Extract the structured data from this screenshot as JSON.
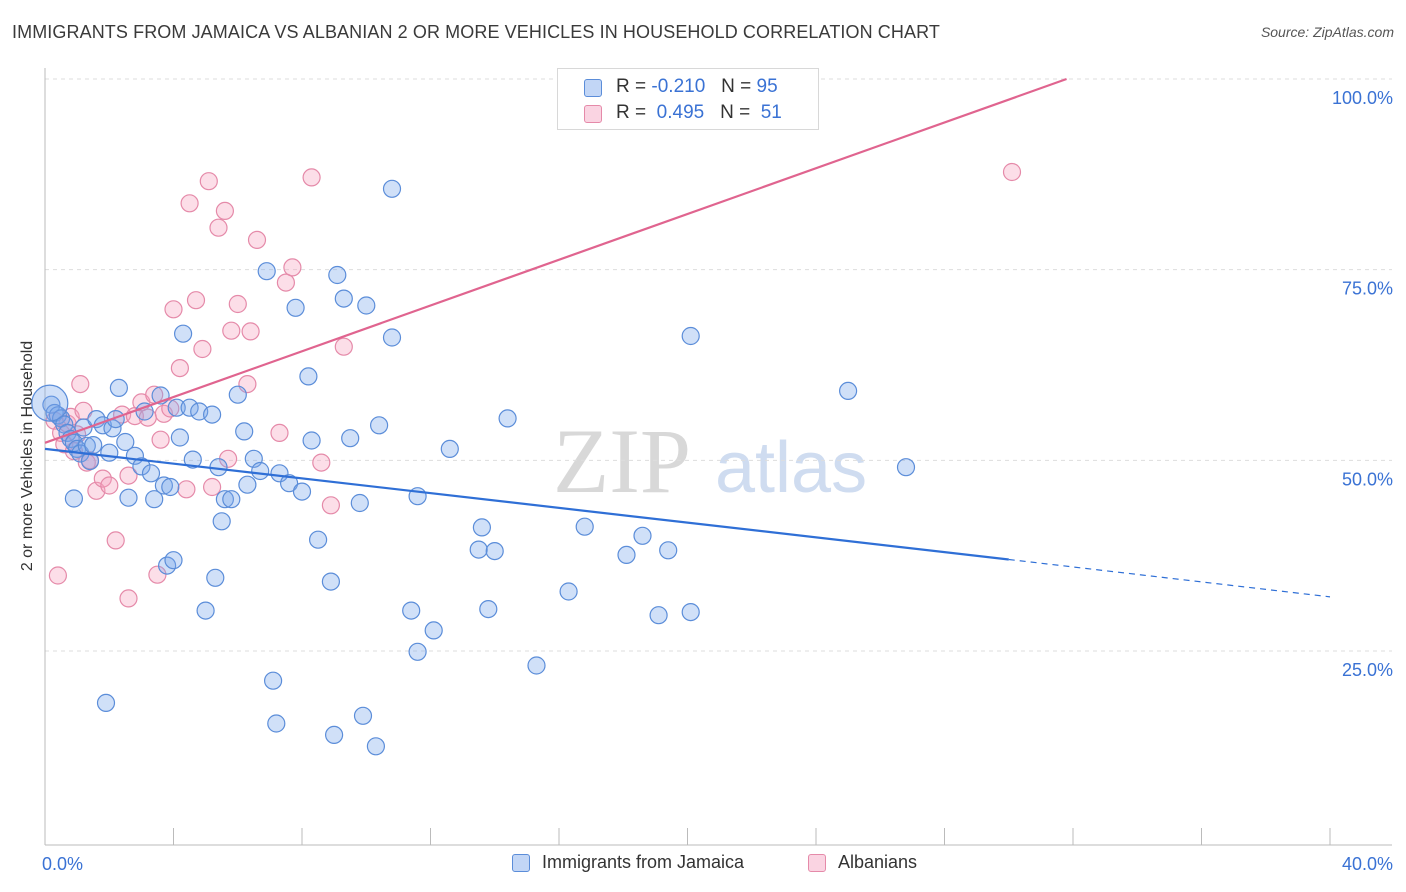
{
  "title": "IMMIGRANTS FROM JAMAICA VS ALBANIAN 2 OR MORE VEHICLES IN HOUSEHOLD CORRELATION CHART",
  "source": "Source: ZipAtlas.com",
  "watermark": {
    "zip": "ZIP",
    "atlas": "atlas"
  },
  "colors": {
    "blue_fill": "rgba(120,165,235,0.35)",
    "blue_stroke": "#5b8dd9",
    "blue_line": "#2f6fd6",
    "pink_fill": "rgba(245,160,190,0.35)",
    "pink_stroke": "#e58aa9",
    "pink_line": "#e0648f",
    "axis_text": "#3a72d4",
    "grid": "#dddddd"
  },
  "legend": {
    "rows": [
      {
        "r_label": "R =",
        "r_value": "-0.210",
        "n_label": "N =",
        "n_value": "95"
      },
      {
        "r_label": "R =",
        "r_value": "0.495",
        "n_label": "N =",
        "n_value": "51"
      }
    ]
  },
  "chart_data": {
    "type": "scatter",
    "title": "IMMIGRANTS FROM JAMAICA VS ALBANIAN 2 OR MORE VEHICLES IN HOUSEHOLD CORRELATION CHART",
    "xlabel": "",
    "ylabel": "2 or more Vehicles in Household",
    "xlim": [
      0,
      40
    ],
    "ylim": [
      0,
      105
    ],
    "x_tick_labels": [
      "0.0%",
      "40.0%"
    ],
    "y_ticks": [
      25,
      50,
      75,
      100
    ],
    "y_tick_labels": [
      "25.0%",
      "50.0%",
      "75.0%",
      "100.0%"
    ],
    "grid": true,
    "legend_position": "top-center",
    "series": [
      {
        "name": "Immigrants from Jamaica",
        "color": "#5b8dd9",
        "r": -0.21,
        "n": 95,
        "trend": {
          "x0": 0,
          "y0": 51.5,
          "x1": 30,
          "y1": 37.0,
          "dash_to_x": 40,
          "dash_to_y": 32.1
        },
        "points": [
          [
            0.2,
            57.3
          ],
          [
            0.3,
            56.2
          ],
          [
            0.4,
            55.9
          ],
          [
            0.5,
            55.5
          ],
          [
            0.6,
            54.7
          ],
          [
            0.7,
            53.6
          ],
          [
            0.8,
            52.8
          ],
          [
            0.9,
            52.3
          ],
          [
            1.0,
            51.5
          ],
          [
            1.1,
            50.9
          ],
          [
            1.2,
            54.3
          ],
          [
            1.3,
            51.9
          ],
          [
            1.4,
            49.9
          ],
          [
            1.6,
            55.4
          ],
          [
            1.8,
            54.6
          ],
          [
            2.1,
            54.2
          ],
          [
            2.2,
            55.4
          ],
          [
            2.3,
            59.5
          ],
          [
            2.5,
            52.4
          ],
          [
            2.6,
            45.1
          ],
          [
            2.8,
            50.6
          ],
          [
            3.0,
            49.2
          ],
          [
            3.1,
            56.4
          ],
          [
            3.3,
            48.3
          ],
          [
            3.4,
            44.9
          ],
          [
            3.6,
            58.5
          ],
          [
            3.7,
            46.7
          ],
          [
            3.8,
            36.2
          ],
          [
            4.0,
            36.9
          ],
          [
            4.1,
            56.9
          ],
          [
            4.2,
            53.0
          ],
          [
            4.3,
            66.6
          ],
          [
            4.5,
            56.9
          ],
          [
            4.6,
            50.1
          ],
          [
            4.8,
            56.4
          ],
          [
            5.0,
            30.3
          ],
          [
            5.2,
            56.0
          ],
          [
            5.3,
            34.6
          ],
          [
            5.4,
            49.1
          ],
          [
            5.5,
            42.0
          ],
          [
            5.6,
            44.9
          ],
          [
            5.8,
            44.9
          ],
          [
            6.0,
            58.6
          ],
          [
            6.2,
            53.8
          ],
          [
            6.3,
            46.8
          ],
          [
            6.5,
            50.2
          ],
          [
            6.7,
            48.6
          ],
          [
            6.9,
            74.8
          ],
          [
            7.1,
            21.1
          ],
          [
            7.3,
            48.3
          ],
          [
            7.6,
            47.0
          ],
          [
            7.8,
            70.0
          ],
          [
            8.0,
            45.9
          ],
          [
            8.2,
            61.0
          ],
          [
            8.3,
            52.6
          ],
          [
            8.5,
            39.6
          ],
          [
            8.9,
            34.1
          ],
          [
            9.1,
            74.3
          ],
          [
            9.3,
            71.2
          ],
          [
            9.5,
            52.9
          ],
          [
            9.8,
            44.4
          ],
          [
            10.0,
            70.3
          ],
          [
            10.4,
            54.6
          ],
          [
            10.8,
            66.1
          ],
          [
            11.4,
            30.3
          ],
          [
            11.6,
            45.3
          ],
          [
            12.1,
            27.7
          ],
          [
            12.6,
            51.5
          ],
          [
            13.5,
            38.3
          ],
          [
            13.6,
            41.2
          ],
          [
            14.0,
            38.1
          ],
          [
            14.4,
            55.5
          ],
          [
            15.3,
            23.1
          ],
          [
            16.3,
            32.8
          ],
          [
            16.8,
            41.3
          ],
          [
            18.1,
            37.6
          ],
          [
            18.6,
            40.1
          ],
          [
            19.1,
            29.7
          ],
          [
            19.4,
            38.2
          ],
          [
            20.1,
            30.1
          ],
          [
            20.1,
            66.3
          ],
          [
            25.0,
            59.1
          ],
          [
            26.8,
            49.1
          ],
          [
            1.9,
            18.2
          ],
          [
            7.2,
            15.5
          ],
          [
            9.0,
            14.0
          ],
          [
            10.3,
            12.5
          ],
          [
            9.9,
            16.5
          ],
          [
            10.8,
            85.6
          ],
          [
            13.8,
            30.5
          ],
          [
            11.6,
            24.9
          ],
          [
            3.9,
            46.5
          ],
          [
            1.5,
            52.0
          ],
          [
            2.0,
            51.0
          ],
          [
            0.9,
            45.0
          ]
        ]
      },
      {
        "name": "Albanians",
        "color": "#e58aa9",
        "r": 0.495,
        "n": 51,
        "trend": {
          "x0": 0,
          "y0": 52.3,
          "x1": 31.8,
          "y1": 100.0
        },
        "points": [
          [
            0.3,
            55.2
          ],
          [
            0.4,
            34.9
          ],
          [
            0.5,
            53.6
          ],
          [
            0.6,
            52.1
          ],
          [
            0.7,
            54.8
          ],
          [
            0.8,
            55.7
          ],
          [
            0.9,
            51.2
          ],
          [
            1.0,
            53.4
          ],
          [
            1.1,
            60.0
          ],
          [
            1.2,
            56.5
          ],
          [
            1.3,
            49.7
          ],
          [
            1.6,
            46.0
          ],
          [
            1.8,
            47.6
          ],
          [
            2.0,
            46.7
          ],
          [
            2.2,
            39.5
          ],
          [
            2.4,
            56.0
          ],
          [
            2.6,
            31.9
          ],
          [
            2.8,
            55.8
          ],
          [
            3.0,
            57.6
          ],
          [
            3.2,
            55.6
          ],
          [
            3.4,
            58.6
          ],
          [
            3.6,
            52.7
          ],
          [
            3.7,
            56.1
          ],
          [
            3.9,
            56.8
          ],
          [
            4.0,
            69.8
          ],
          [
            4.2,
            62.1
          ],
          [
            4.4,
            46.2
          ],
          [
            4.5,
            83.7
          ],
          [
            4.7,
            71.0
          ],
          [
            4.9,
            64.6
          ],
          [
            5.1,
            86.6
          ],
          [
            5.2,
            46.5
          ],
          [
            5.4,
            80.5
          ],
          [
            5.6,
            82.7
          ],
          [
            5.8,
            67.0
          ],
          [
            6.0,
            70.5
          ],
          [
            6.3,
            60.0
          ],
          [
            6.4,
            66.9
          ],
          [
            6.6,
            78.9
          ],
          [
            7.3,
            53.6
          ],
          [
            7.5,
            73.3
          ],
          [
            7.7,
            75.3
          ],
          [
            8.3,
            87.1
          ],
          [
            8.6,
            49.7
          ],
          [
            8.9,
            44.1
          ],
          [
            9.3,
            64.9
          ],
          [
            30.1,
            87.8
          ],
          [
            2.6,
            48.0
          ],
          [
            1.4,
            50.0
          ],
          [
            3.5,
            35.0
          ],
          [
            5.7,
            50.2
          ]
        ]
      }
    ]
  },
  "bottom_legend": {
    "items": [
      "Immigrants from Jamaica",
      "Albanians"
    ]
  }
}
